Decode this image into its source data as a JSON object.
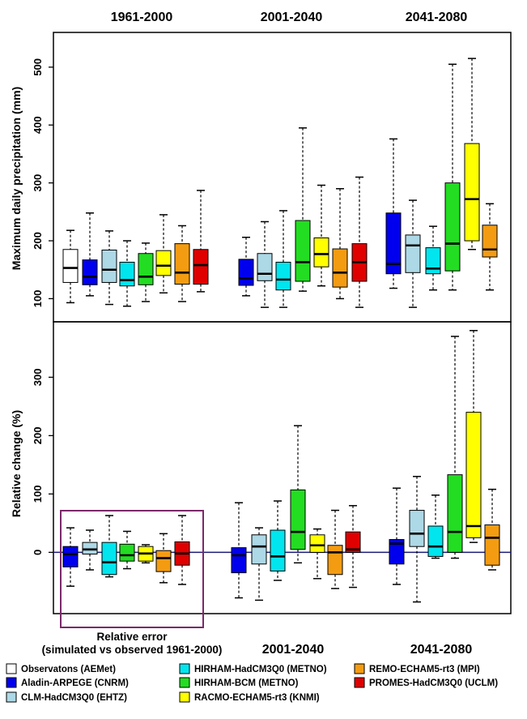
{
  "chart_data": [
    {
      "type": "boxplot",
      "panel": "top",
      "ylabel": "Maximum daily precipitation (mm)",
      "ylim": [
        60,
        560
      ],
      "yticks": [
        100,
        200,
        300,
        400,
        500
      ],
      "period_titles": [
        "1961-2000",
        "2001-2040",
        "2041-2080"
      ],
      "groups": [
        {
          "period": "1961-2000",
          "boxes": [
            {
              "series": "Observatons (AEMet)",
              "min": 93,
              "q1": 128,
              "median": 153,
              "q3": 185,
              "max": 218
            },
            {
              "series": "Aladin-ARPEGE (CNRM)",
              "min": 105,
              "q1": 124,
              "median": 138,
              "q3": 167,
              "max": 248
            },
            {
              "series": "CLM-HadCM3Q0 (EHTZ)",
              "min": 90,
              "q1": 128,
              "median": 150,
              "q3": 184,
              "max": 217
            },
            {
              "series": "HIRHAM-HadCM3Q0 (METNO)",
              "min": 87,
              "q1": 122,
              "median": 132,
              "q3": 163,
              "max": 200
            },
            {
              "series": "HIRHAM-BCM (METNO)",
              "min": 95,
              "q1": 124,
              "median": 138,
              "q3": 178,
              "max": 196
            },
            {
              "series": "RACMO-ECHAM5-rt3 (KNMI)",
              "min": 110,
              "q1": 140,
              "median": 157,
              "q3": 183,
              "max": 245
            },
            {
              "series": "REMO-ECHAM5-rt3 (MPI)",
              "min": 95,
              "q1": 125,
              "median": 145,
              "q3": 195,
              "max": 226
            },
            {
              "series": "PROMES-HadCM3Q0 (UCLM)",
              "min": 112,
              "q1": 125,
              "median": 158,
              "q3": 185,
              "max": 287
            }
          ]
        },
        {
          "period": "2001-2040",
          "boxes": [
            {
              "series": "Aladin-ARPEGE (CNRM)",
              "min": 105,
              "q1": 123,
              "median": 135,
              "q3": 168,
              "max": 206
            },
            {
              "series": "CLM-HadCM3Q0 (EHTZ)",
              "min": 85,
              "q1": 131,
              "median": 143,
              "q3": 178,
              "max": 233
            },
            {
              "series": "HIRHAM-HadCM3Q0 (METNO)",
              "min": 85,
              "q1": 115,
              "median": 133,
              "q3": 163,
              "max": 252
            },
            {
              "series": "HIRHAM-BCM (METNO)",
              "min": 113,
              "q1": 130,
              "median": 163,
              "q3": 235,
              "max": 395
            },
            {
              "series": "RACMO-ECHAM5-rt3 (KNMI)",
              "min": 122,
              "q1": 155,
              "median": 177,
              "q3": 205,
              "max": 296
            },
            {
              "series": "REMO-ECHAM5-rt3 (MPI)",
              "min": 100,
              "q1": 120,
              "median": 145,
              "q3": 186,
              "max": 290
            },
            {
              "series": "PROMES-HadCM3Q0 (UCLM)",
              "min": 85,
              "q1": 130,
              "median": 163,
              "q3": 195,
              "max": 310
            }
          ]
        },
        {
          "period": "2041-2080",
          "boxes": [
            {
              "series": "Aladin-ARPEGE (CNRM)",
              "min": 118,
              "q1": 143,
              "median": 160,
              "q3": 248,
              "max": 376
            },
            {
              "series": "CLM-HadCM3Q0 (EHTZ)",
              "min": 85,
              "q1": 145,
              "median": 192,
              "q3": 210,
              "max": 270
            },
            {
              "series": "HIRHAM-HadCM3Q0 (METNO)",
              "min": 115,
              "q1": 143,
              "median": 152,
              "q3": 188,
              "max": 225
            },
            {
              "series": "HIRHAM-BCM (METNO)",
              "min": 115,
              "q1": 148,
              "median": 195,
              "q3": 300,
              "max": 505
            },
            {
              "series": "RACMO-ECHAM5-rt3 (KNMI)",
              "min": 185,
              "q1": 200,
              "median": 272,
              "q3": 368,
              "max": 515
            },
            {
              "series": "REMO-ECHAM5-rt3 (MPI)",
              "min": 115,
              "q1": 172,
              "median": 185,
              "q3": 227,
              "max": 264
            }
          ]
        }
      ]
    },
    {
      "type": "boxplot",
      "panel": "bottom",
      "ylabel": "Relative change (%)",
      "ylim": [
        -105,
        395
      ],
      "yticks": [
        0,
        100,
        200,
        300
      ],
      "zero_line": true,
      "period_labels": [
        "2001-2040",
        "2041-2080"
      ],
      "inset_label_lines": [
        "Relative error",
        "(simulated vs observed 1961-2000)"
      ],
      "groups": [
        {
          "period": "Relative error",
          "boxes": [
            {
              "series": "Aladin-ARPEGE (CNRM)",
              "min": -58,
              "q1": -25,
              "median": -3,
              "q3": 10,
              "max": 42
            },
            {
              "series": "CLM-HadCM3Q0 (EHTZ)",
              "min": -30,
              "q1": -3,
              "median": 5,
              "q3": 17,
              "max": 38
            },
            {
              "series": "HIRHAM-HadCM3Q0 (METNO)",
              "min": -42,
              "q1": -38,
              "median": -17,
              "q3": 17,
              "max": 63
            },
            {
              "series": "HIRHAM-BCM (METNO)",
              "min": -28,
              "q1": -15,
              "median": -5,
              "q3": 14,
              "max": 36
            },
            {
              "series": "RACMO-ECHAM5-rt3 (KNMI)",
              "min": -18,
              "q1": -15,
              "median": -2,
              "q3": 10,
              "max": 13
            },
            {
              "series": "REMO-ECHAM5-rt3 (MPI)",
              "min": -52,
              "q1": -33,
              "median": -10,
              "q3": 3,
              "max": 32
            },
            {
              "series": "PROMES-HadCM3Q0 (UCLM)",
              "min": -55,
              "q1": -22,
              "median": -2,
              "q3": 18,
              "max": 63
            }
          ]
        },
        {
          "period": "2001-2040",
          "boxes": [
            {
              "series": "Aladin-ARPEGE (CNRM)",
              "min": -78,
              "q1": -35,
              "median": -5,
              "q3": 8,
              "max": 85
            },
            {
              "series": "CLM-HadCM3Q0 (EHTZ)",
              "min": -82,
              "q1": -20,
              "median": 10,
              "q3": 30,
              "max": 42
            },
            {
              "series": "HIRHAM-HadCM3Q0 (METNO)",
              "min": -48,
              "q1": -32,
              "median": -7,
              "q3": 38,
              "max": 88
            },
            {
              "series": "HIRHAM-BCM (METNO)",
              "min": -18,
              "q1": 5,
              "median": 35,
              "q3": 107,
              "max": 217
            },
            {
              "series": "RACMO-ECHAM5-rt3 (KNMI)",
              "min": -45,
              "q1": 0,
              "median": 12,
              "q3": 30,
              "max": 40
            },
            {
              "series": "REMO-ECHAM5-rt3 (MPI)",
              "min": -62,
              "q1": -38,
              "median": 0,
              "q3": 12,
              "max": 72
            },
            {
              "series": "PROMES-HadCM3Q0 (UCLM)",
              "min": -60,
              "q1": 0,
              "median": 5,
              "q3": 35,
              "max": 80
            }
          ]
        },
        {
          "period": "2041-2080",
          "boxes": [
            {
              "series": "Aladin-ARPEGE (CNRM)",
              "min": -55,
              "q1": -20,
              "median": 15,
              "q3": 22,
              "max": 110
            },
            {
              "series": "CLM-HadCM3Q0 (EHTZ)",
              "min": -85,
              "q1": 10,
              "median": 32,
              "q3": 72,
              "max": 130
            },
            {
              "series": "HIRHAM-HadCM3Q0 (METNO)",
              "min": -10,
              "q1": -7,
              "median": 10,
              "q3": 45,
              "max": 98
            },
            {
              "series": "HIRHAM-BCM (METNO)",
              "min": -10,
              "q1": 0,
              "median": 35,
              "q3": 133,
              "max": 370
            },
            {
              "series": "RACMO-ECHAM5-rt3 (KNMI)",
              "min": 17,
              "q1": 25,
              "median": 45,
              "q3": 240,
              "max": 380
            },
            {
              "series": "REMO-ECHAM5-rt3 (MPI)",
              "min": -30,
              "q1": -22,
              "median": 25,
              "q3": 47,
              "max": 108
            }
          ]
        }
      ]
    }
  ],
  "legend": [
    {
      "label": "Observatons (AEMet)",
      "color": "#ffffff"
    },
    {
      "label": "Aladin-ARPEGE (CNRM)",
      "color": "#0000ee"
    },
    {
      "label": "CLM-HadCM3Q0 (EHTZ)",
      "color": "#add8e6"
    },
    {
      "label": "HIRHAM-HadCM3Q0 (METNO)",
      "color": "#00e5ee"
    },
    {
      "label": "HIRHAM-BCM (METNO)",
      "color": "#22dd22"
    },
    {
      "label": "RACMO-ECHAM5-rt3 (KNMI)",
      "color": "#ffff00"
    },
    {
      "label": "REMO-ECHAM5-rt3 (MPI)",
      "color": "#f39c12"
    },
    {
      "label": "PROMES-HadCM3Q0 (UCLM)",
      "color": "#e00000"
    }
  ],
  "colors": {
    "inset_box": "#7a2a6a",
    "zero_line": "#1a1a7a"
  }
}
